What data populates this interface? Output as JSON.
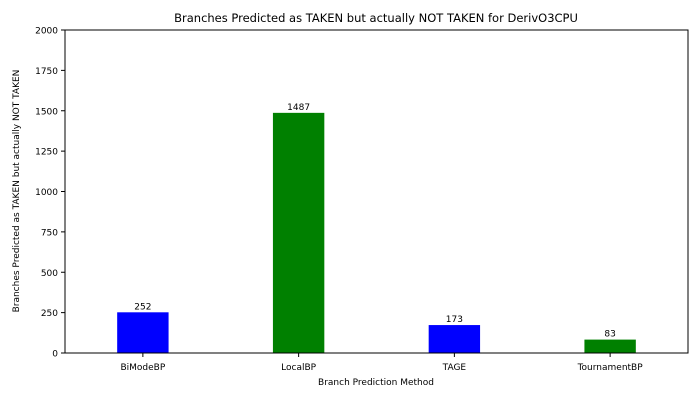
{
  "chart_data": {
    "type": "bar",
    "title": "Branches Predicted as TAKEN but actually NOT TAKEN for DerivO3CPU",
    "xlabel": "Branch Prediction Method",
    "ylabel": "Branches Predicted as TAKEN but actually NOT TAKEN",
    "categories": [
      "BiModeBP",
      "LocalBP",
      "TAGE",
      "TournamentBP"
    ],
    "values": [
      252,
      1487,
      173,
      83
    ],
    "value_labels": [
      "252",
      "1487",
      "173",
      "83"
    ],
    "bar_colors": [
      "#0000ff",
      "#008000",
      "#0000ff",
      "#008000"
    ],
    "ylim": [
      0,
      2000
    ],
    "yticks": [
      0,
      250,
      500,
      750,
      1000,
      1250,
      1500,
      1750,
      2000
    ],
    "ytick_labels": [
      "0",
      "250",
      "500",
      "750",
      "1000",
      "1250",
      "1500",
      "1750",
      "2000"
    ],
    "grid": false,
    "legend": "none"
  }
}
